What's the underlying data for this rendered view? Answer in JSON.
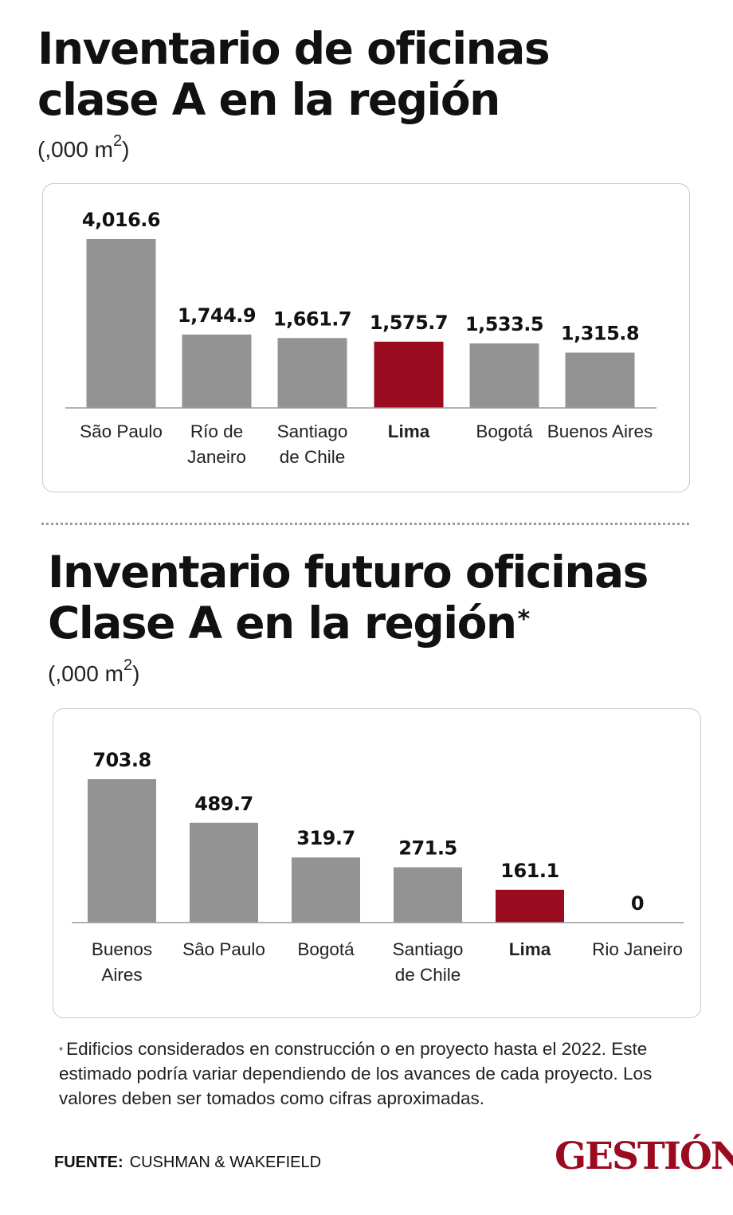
{
  "colors": {
    "bar": "#939393",
    "highlight": "#9b0b1f",
    "brand": "#9b0b1f",
    "baseline": "#9a9a9a"
  },
  "chart1": {
    "title_line1": "Inventario de oficinas",
    "title_line2": "clase A en la región",
    "unit_prefix": "(,000 m",
    "unit_sup": "2",
    "unit_suffix": ")"
  },
  "chart2": {
    "title_line1": "Inventario futuro oficinas",
    "title_line2": "Clase A en la región",
    "title_asterisk": "*",
    "unit_prefix": "(,000 m",
    "unit_sup": "2",
    "unit_suffix": ")"
  },
  "chart_data": [
    {
      "type": "bar",
      "title": "Inventario de oficinas clase A en la región",
      "ylabel": "(,000 m2)",
      "xlabel": "",
      "grid": false,
      "ylim": [
        0,
        4016.6
      ],
      "categories": [
        [
          "São Paulo"
        ],
        [
          "Río de",
          "Janeiro"
        ],
        [
          "Santiago",
          "de Chile"
        ],
        [
          "Lima"
        ],
        [
          "Bogotá"
        ],
        [
          "Buenos Aires"
        ]
      ],
      "values": [
        4016.6,
        1744.9,
        1661.7,
        1575.7,
        1533.5,
        1315.8
      ],
      "value_labels": [
        "4,016.6",
        "1,744.9",
        "1,661.7",
        "1,575.7",
        "1,533.5",
        "1,315.8"
      ],
      "highlight": "Lima"
    },
    {
      "type": "bar",
      "title": "Inventario futuro oficinas Clase A en la región*",
      "ylabel": "(,000 m2)",
      "xlabel": "",
      "grid": false,
      "ylim": [
        0,
        703.8
      ],
      "categories": [
        [
          "Buenos",
          "Aires"
        ],
        [
          "Sâo Paulo"
        ],
        [
          "Bogotá"
        ],
        [
          "Santiago",
          "de Chile"
        ],
        [
          "Lima"
        ],
        [
          "Rio Janeiro"
        ]
      ],
      "values": [
        703.8,
        489.7,
        319.7,
        271.5,
        161.1,
        0
      ],
      "value_labels": [
        "703.8",
        "489.7",
        "319.7",
        "271.5",
        "161.1",
        "0"
      ],
      "highlight": "Lima"
    }
  ],
  "footnote": {
    "marker": "*",
    "text": "Edificios considerados en construcción o en proyecto hasta el 2022. Este estimado podría variar dependiendo de los avances de cada proyecto. Los valores deben ser tomados como cifras aproximadas."
  },
  "source": {
    "label": "FUENTE:",
    "value": "CUSHMAN & WAKEFIELD"
  },
  "brand": {
    "name": "GESTIÓN"
  }
}
